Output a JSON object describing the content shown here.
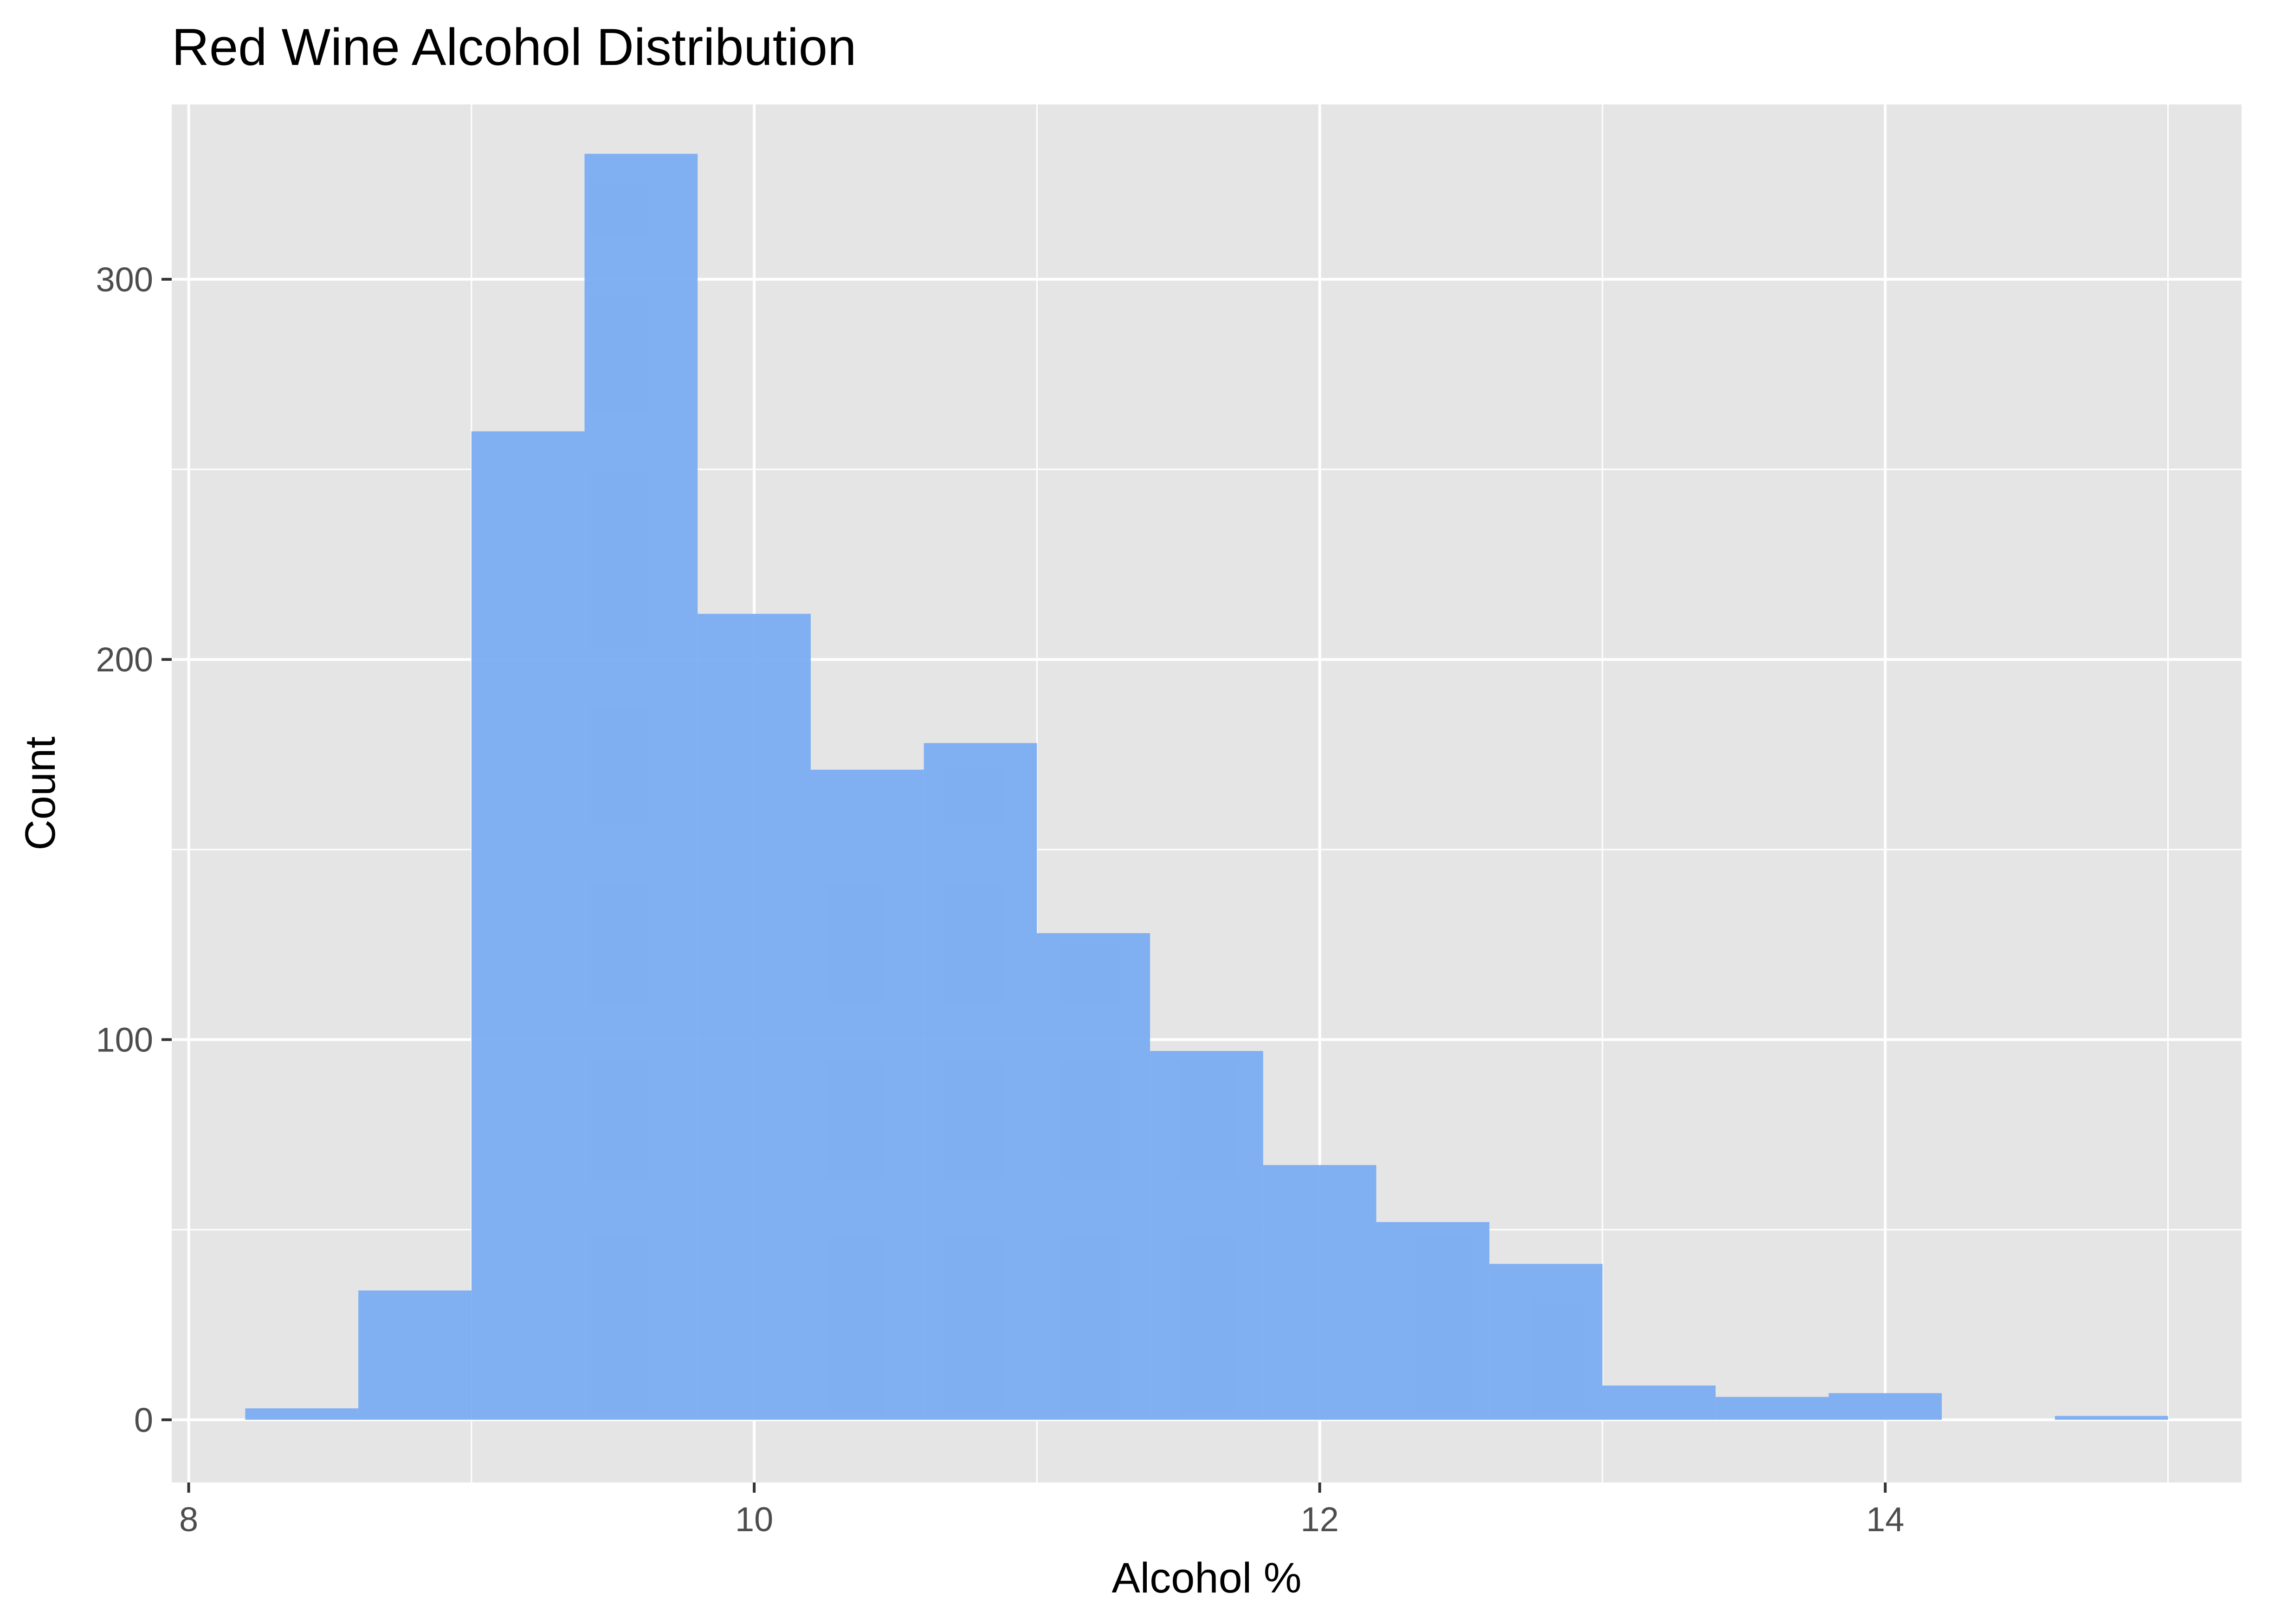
{
  "chart_data": {
    "type": "bar",
    "title": "Red Wine Alcohol Distribution",
    "xlabel": "Alcohol %",
    "ylabel": "Count",
    "xlim": [
      7.94,
      15.26
    ],
    "ylim": [
      -16.5,
      346
    ],
    "x_ticks": [
      8,
      10,
      12,
      14
    ],
    "y_ticks": [
      0,
      100,
      200,
      300
    ],
    "x_minor_grid": [
      9,
      11,
      13,
      15
    ],
    "y_minor_grid": [
      50,
      150,
      250
    ],
    "grid": true,
    "bin_width": 0.4,
    "bins": [
      {
        "x0": 8.2,
        "x1": 8.6,
        "count": 3
      },
      {
        "x0": 8.6,
        "x1": 9.0,
        "count": 34
      },
      {
        "x0": 9.0,
        "x1": 9.4,
        "count": 260
      },
      {
        "x0": 9.4,
        "x1": 9.8,
        "count": 333
      },
      {
        "x0": 9.8,
        "x1": 10.2,
        "count": 212
      },
      {
        "x0": 10.2,
        "x1": 10.6,
        "count": 171
      },
      {
        "x0": 10.6,
        "x1": 11.0,
        "count": 178
      },
      {
        "x0": 11.0,
        "x1": 11.4,
        "count": 128
      },
      {
        "x0": 11.4,
        "x1": 11.8,
        "count": 97
      },
      {
        "x0": 11.8,
        "x1": 12.2,
        "count": 67
      },
      {
        "x0": 12.2,
        "x1": 12.6,
        "count": 52
      },
      {
        "x0": 12.6,
        "x1": 13.0,
        "count": 41
      },
      {
        "x0": 13.0,
        "x1": 13.4,
        "count": 9
      },
      {
        "x0": 13.4,
        "x1": 13.8,
        "count": 6
      },
      {
        "x0": 13.8,
        "x1": 14.2,
        "count": 7
      },
      {
        "x0": 14.2,
        "x1": 14.6,
        "count": 0
      },
      {
        "x0": 14.6,
        "x1": 15.0,
        "count": 1
      }
    ],
    "colors": {
      "bar_fill": "#7aacf2",
      "panel_background": "#e5e5e5",
      "grid_line": "#ffffff",
      "tick_mark": "#333333"
    }
  }
}
